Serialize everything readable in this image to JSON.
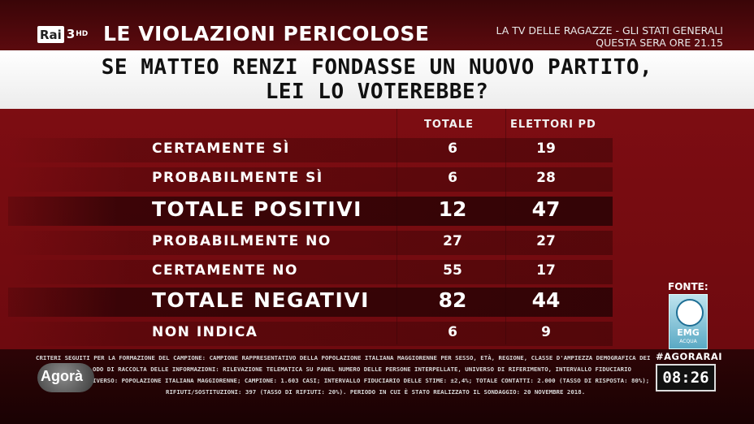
{
  "channel": {
    "rai": "Rai",
    "number": "3",
    "hd": "HD"
  },
  "show_title": "LE VIOLAZIONI PERICOLOSE",
  "promo": {
    "line1": "LA TV DELLE RAGAZZE - GLI STATI GENERALI",
    "line2": "QUESTA SERA ORE 21.15"
  },
  "question": {
    "line1": "SE MATTEO RENZI FONDASSE UN NUOVO PARTITO,",
    "line2": "LEI LO VOTEREBBE?"
  },
  "columns": {
    "total": "TOTALE",
    "pd": "ELETTORI PD"
  },
  "rows": [
    {
      "label": "CERTAMENTE SÌ",
      "total": "6",
      "pd": "19"
    },
    {
      "label": "PROBABILMENTE SÌ",
      "total": "6",
      "pd": "28"
    },
    {
      "label": "TOTALE POSITIVI",
      "total": "12",
      "pd": "47"
    },
    {
      "label": "PROBABILMENTE NO",
      "total": "27",
      "pd": "27"
    },
    {
      "label": "CERTAMENTE NO",
      "total": "55",
      "pd": "17"
    },
    {
      "label": "TOTALE NEGATIVI",
      "total": "82",
      "pd": "44"
    },
    {
      "label": "NON INDICA",
      "total": "6",
      "pd": "9"
    }
  ],
  "source": {
    "label": "FONTE:",
    "logo_text": "EMG",
    "logo_sub": "ACQUA"
  },
  "methodology": [
    "CRITERI SEGUITI PER LA FORMAZIONE DEL CAMPIONE:  CAMPIONE RAPPRESENTATIVO DELLA POPOLAZIONE ITALIANA MAGGIORENNE PER SESSO, ETÀ, REGIONE, CLASSE D'AMPIEZZA DEMOGRAFICA DEI COMUNI",
    "ODO DI RACCOLTA DELLE INFORMAZIONI:  RILEVAZIONE TELEMATICA SU PANEL NUMERO DELLE PERSONE INTERPELLATE, UNIVERSO DI RIFERIMENTO, INTERVALLO FIDUCIARIO",
    "IVERSO: POPOLAZIONE ITALIANA MAGGIORENNE; CAMPIONE: 1.603 CASI; INTERVALLO FIDUCIARIO DELLE STIME: ±2,4%; TOTALE CONTATTI: 2.000 (TASSO DI RISPOSTA: 80%);",
    "RIFIUTI/SOSTITUZIONI: 397 (TASSO DI RIFIUTI: 20%). PERIODO IN CUI È STATO REALIZZATO IL SONDAGGIO:  20 NOVEMBRE 2018."
  ],
  "program_logo": "Agorà",
  "hashtag": "#AGORARAI",
  "clock": "08:26"
}
